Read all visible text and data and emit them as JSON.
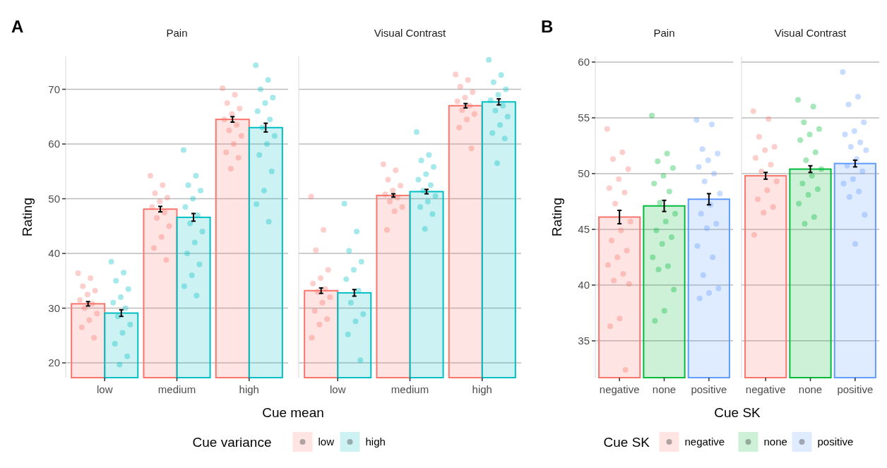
{
  "chart_data": [
    {
      "type": "bar",
      "title": "Pain",
      "xlabel": "Cue mean",
      "ylabel": "Rating",
      "legend_title": "Cue variance",
      "legend": "bottom",
      "annotations": [
        "A"
      ],
      "grid": "y",
      "categories": [
        "low",
        "medium",
        "high"
      ],
      "ylim": [
        17.3,
        76
      ],
      "yticks": [
        20,
        30,
        40,
        50,
        60,
        70
      ],
      "series": [
        {
          "name": "low",
          "color": "#f8766d",
          "values": [
            30.8,
            48.1,
            64.5
          ],
          "errors": [
            0.4,
            0.5,
            0.5
          ]
        },
        {
          "name": "high",
          "color": "#00bfc4",
          "values": [
            29.1,
            46.6,
            63.0
          ],
          "errors": [
            0.6,
            0.7,
            0.8
          ]
        },
        {
          "type": "scatter",
          "color": "#f8766d",
          "x": [
            "low",
            "low",
            "low",
            "low",
            "low",
            "low",
            "low",
            "low",
            "low",
            "low",
            "low",
            "low"
          ],
          "values": [
            36.4,
            35.5,
            34.0,
            33.2,
            32.5,
            31.5,
            30.8,
            30.0,
            29.0,
            27.8,
            26.5,
            24.6
          ]
        },
        {
          "type": "scatter",
          "color": "#00bfc4",
          "x": [
            "low",
            "low",
            "low",
            "low",
            "low",
            "low",
            "low",
            "low",
            "low",
            "low",
            "low",
            "low",
            "low"
          ],
          "values": [
            38.5,
            36.5,
            35.0,
            33.5,
            32.0,
            31.0,
            30.0,
            28.5,
            27.0,
            25.5,
            23.5,
            21.2,
            19.7
          ]
        },
        {
          "type": "scatter",
          "color": "#f8766d",
          "x": [
            "medium",
            "medium",
            "medium",
            "medium",
            "medium",
            "medium",
            "medium",
            "medium",
            "medium",
            "medium",
            "medium",
            "medium"
          ],
          "values": [
            54.2,
            52.5,
            51.0,
            50.2,
            49.5,
            48.5,
            47.5,
            46.5,
            45.0,
            43.0,
            41.0,
            38.8
          ]
        },
        {
          "type": "scatter",
          "color": "#00bfc4",
          "x": [
            "medium",
            "medium",
            "medium",
            "medium",
            "medium",
            "medium",
            "medium",
            "medium",
            "medium",
            "medium",
            "medium",
            "medium",
            "medium",
            "medium",
            "medium"
          ],
          "values": [
            58.9,
            54.2,
            52.5,
            51.5,
            50.0,
            48.5,
            47.0,
            45.5,
            44.0,
            42.0,
            40.0,
            38.0,
            36.0,
            34.0,
            32.3
          ]
        },
        {
          "type": "scatter",
          "color": "#f8766d",
          "x": [
            "high",
            "high",
            "high",
            "high",
            "high",
            "high",
            "high",
            "high",
            "high",
            "high",
            "high",
            "high",
            "high"
          ],
          "values": [
            70.2,
            69.0,
            67.5,
            66.5,
            65.5,
            64.5,
            63.5,
            62.5,
            61.5,
            60.0,
            58.5,
            57.5,
            55.5
          ]
        },
        {
          "type": "scatter",
          "color": "#00bfc4",
          "x": [
            "high",
            "high",
            "high",
            "high",
            "high",
            "high",
            "high",
            "high",
            "high",
            "high",
            "high",
            "high",
            "high",
            "high",
            "high"
          ],
          "values": [
            74.4,
            71.7,
            70.0,
            68.5,
            67.5,
            66.0,
            64.5,
            63.0,
            61.5,
            60.0,
            58.0,
            55.0,
            51.5,
            49.0,
            45.8
          ]
        }
      ]
    },
    {
      "type": "bar",
      "title": "Visual Contrast",
      "tick_labels": "x",
      "grid": "y",
      "categories": [
        "low",
        "medium",
        "high"
      ],
      "ylim": [
        17.3,
        76
      ],
      "yticks": [
        20,
        30,
        40,
        50,
        60,
        70
      ],
      "series": [
        {
          "color": "#f8766d",
          "values": [
            33.2,
            50.6,
            67.0
          ],
          "errors": [
            0.5,
            0.3,
            0.4
          ]
        },
        {
          "color": "#00bfc4",
          "values": [
            32.8,
            51.3,
            67.7
          ],
          "errors": [
            0.6,
            0.4,
            0.55
          ]
        },
        {
          "type": "scatter",
          "color": "#f8766d",
          "x": [
            "low",
            "low",
            "low",
            "low",
            "low",
            "low",
            "low",
            "low",
            "low",
            "low",
            "low",
            "low",
            "low",
            "low"
          ],
          "values": [
            50.4,
            44.3,
            40.6,
            37.0,
            35.5,
            34.5,
            33.5,
            33.0,
            32.0,
            31.0,
            29.5,
            28.0,
            27.0,
            24.6
          ]
        },
        {
          "type": "scatter",
          "color": "#00bfc4",
          "x": [
            "low",
            "low",
            "low",
            "low",
            "low",
            "low",
            "low",
            "low",
            "low",
            "low",
            "low",
            "low"
          ],
          "values": [
            49.1,
            44.0,
            40.5,
            38.5,
            37.0,
            35.3,
            33.2,
            31.0,
            28.9,
            27.6,
            25.2,
            20.5
          ]
        },
        {
          "type": "scatter",
          "color": "#f8766d",
          "x": [
            "medium",
            "medium",
            "medium",
            "medium",
            "medium",
            "medium",
            "medium",
            "medium",
            "medium",
            "medium",
            "medium"
          ],
          "values": [
            56.3,
            55.2,
            53.5,
            52.4,
            51.5,
            50.8,
            50.2,
            49.5,
            48.5,
            47.7,
            44.3
          ]
        },
        {
          "type": "scatter",
          "color": "#00bfc4",
          "x": [
            "medium",
            "medium",
            "medium",
            "medium",
            "medium",
            "medium",
            "medium",
            "medium",
            "medium",
            "medium",
            "medium",
            "medium",
            "medium"
          ],
          "values": [
            62.2,
            58.0,
            57.0,
            55.8,
            54.5,
            53.5,
            52.5,
            51.5,
            50.5,
            49.5,
            48.5,
            47.2,
            44.5
          ]
        },
        {
          "type": "scatter",
          "color": "#f8766d",
          "x": [
            "high",
            "high",
            "high",
            "high",
            "high",
            "high",
            "high",
            "high",
            "high",
            "high",
            "high",
            "high"
          ],
          "values": [
            72.7,
            71.7,
            70.5,
            69.5,
            68.5,
            67.8,
            67.0,
            66.2,
            65.5,
            64.5,
            63.0,
            59.2
          ]
        },
        {
          "type": "scatter",
          "color": "#00bfc4",
          "x": [
            "high",
            "high",
            "high",
            "high",
            "high",
            "high",
            "high",
            "high",
            "high",
            "high",
            "high",
            "high",
            "high"
          ],
          "values": [
            75.4,
            72.6,
            71.3,
            70.0,
            69.0,
            68.0,
            67.0,
            66.1,
            65.0,
            63.5,
            62.0,
            61.0,
            56.5
          ]
        }
      ]
    },
    {
      "type": "bar",
      "title": "Pain",
      "xlabel": "Cue SK",
      "ylabel": "Rating",
      "legend_title": "Cue SK",
      "legend": "bottom",
      "annotations": [
        "B"
      ],
      "grid": "y",
      "categories": [
        "negative",
        "none",
        "positive"
      ],
      "ylim": [
        31.7,
        60.5
      ],
      "yticks": [
        35,
        40,
        45,
        50,
        55,
        60
      ],
      "series": [
        {
          "colors": [
            "#f8766d",
            "#00ba38",
            "#619cff"
          ],
          "values": [
            46.1,
            47.1,
            47.7
          ],
          "errors": [
            0.6,
            0.5,
            0.5
          ]
        },
        {
          "type": "scatter",
          "color": "#f8766d",
          "x": [
            "negative",
            "negative",
            "negative",
            "negative",
            "negative",
            "negative",
            "negative",
            "negative",
            "negative",
            "negative",
            "negative",
            "negative",
            "negative",
            "negative",
            "negative",
            "negative",
            "negative",
            "negative",
            "negative",
            "negative"
          ],
          "values": [
            54.0,
            51.9,
            51.3,
            50.4,
            49.5,
            48.7,
            48.3,
            47.3,
            45.7,
            44.9,
            44.0,
            43.1,
            42.5,
            41.8,
            41.0,
            40.4,
            40.1,
            37.0,
            36.3,
            32.4
          ]
        },
        {
          "type": "scatter",
          "color": "#00ba38",
          "x": [
            "none",
            "none",
            "none",
            "none",
            "none",
            "none",
            "none",
            "none",
            "none",
            "none",
            "none",
            "none",
            "none",
            "none",
            "none",
            "none",
            "none",
            "none",
            "none"
          ],
          "values": [
            55.2,
            51.8,
            51.1,
            50.5,
            49.8,
            49.1,
            48.4,
            47.4,
            46.4,
            45.7,
            44.9,
            44.3,
            43.7,
            42.5,
            41.7,
            41.4,
            39.6,
            37.7,
            36.8
          ]
        },
        {
          "type": "scatter",
          "color": "#619cff",
          "x": [
            "positive",
            "positive",
            "positive",
            "positive",
            "positive",
            "positive",
            "positive",
            "positive",
            "positive",
            "positive",
            "positive",
            "positive",
            "positive",
            "positive",
            "positive",
            "positive",
            "positive",
            "positive",
            "positive"
          ],
          "values": [
            54.8,
            54.4,
            52.2,
            51.8,
            51.2,
            50.6,
            50.0,
            49.3,
            48.2,
            47.2,
            46.4,
            45.5,
            45.1,
            43.5,
            42.5,
            40.9,
            39.7,
            39.3,
            38.8
          ]
        }
      ]
    },
    {
      "type": "bar",
      "title": "Visual Contrast",
      "tick_labels": "x",
      "grid": "y",
      "categories": [
        "negative",
        "none",
        "positive"
      ],
      "ylim": [
        31.7,
        60.5
      ],
      "yticks": [
        35,
        40,
        45,
        50,
        55,
        60
      ],
      "series": [
        {
          "colors": [
            "#f8766d",
            "#00ba38",
            "#619cff"
          ],
          "values": [
            49.8,
            50.4,
            50.9
          ],
          "errors": [
            0.3,
            0.3,
            0.3
          ]
        },
        {
          "type": "scatter",
          "color": "#f8766d",
          "x": [
            "negative",
            "negative",
            "negative",
            "negative",
            "negative",
            "negative",
            "negative",
            "negative",
            "negative",
            "negative",
            "negative",
            "negative",
            "negative",
            "negative"
          ],
          "values": [
            55.6,
            54.9,
            53.3,
            52.4,
            52.1,
            51.4,
            50.8,
            50.2,
            49.3,
            48.5,
            47.7,
            47.0,
            46.5,
            44.5
          ]
        },
        {
          "type": "scatter",
          "color": "#00ba38",
          "x": [
            "none",
            "none",
            "none",
            "none",
            "none",
            "none",
            "none",
            "none",
            "none",
            "none",
            "none",
            "none",
            "none",
            "none",
            "none",
            "none"
          ],
          "values": [
            56.6,
            56.0,
            54.6,
            54.0,
            53.5,
            53.0,
            51.9,
            51.2,
            50.4,
            49.8,
            49.1,
            48.6,
            48.1,
            47.3,
            46.1,
            45.5
          ]
        },
        {
          "type": "scatter",
          "color": "#619cff",
          "x": [
            "positive",
            "positive",
            "positive",
            "positive",
            "positive",
            "positive",
            "positive",
            "positive",
            "positive",
            "positive",
            "positive",
            "positive",
            "positive",
            "positive",
            "positive",
            "positive",
            "positive",
            "positive"
          ],
          "values": [
            59.1,
            56.9,
            56.2,
            54.6,
            53.8,
            53.5,
            52.8,
            52.4,
            52.1,
            51.3,
            50.7,
            50.2,
            49.5,
            49.1,
            48.4,
            47.9,
            46.3,
            43.7
          ]
        }
      ]
    }
  ]
}
